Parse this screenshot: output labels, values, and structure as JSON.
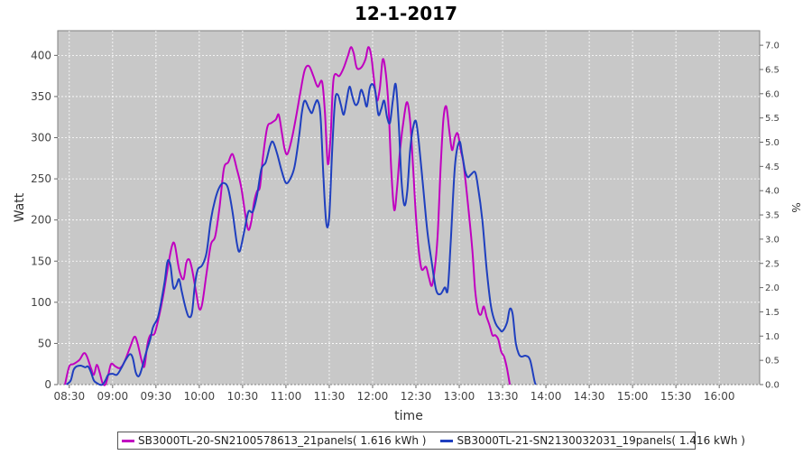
{
  "chart_data": {
    "type": "line",
    "title": "12-1-2017",
    "xlabel": "time",
    "ylabel": "Watt",
    "y2label": "%",
    "x_ticks": [
      "08:30",
      "09:00",
      "09:30",
      "10:00",
      "10:30",
      "11:00",
      "11:30",
      "12:00",
      "12:30",
      "13:00",
      "13:30",
      "14:00",
      "14:30",
      "15:00",
      "15:30",
      "16:00"
    ],
    "y_ticks": [
      0,
      50,
      100,
      150,
      200,
      250,
      300,
      350,
      400
    ],
    "y2_ticks": [
      "0.0",
      "0.5",
      "1.0",
      "1.5",
      "2.0",
      "2.5",
      "3.0",
      "3.5",
      "4.0",
      "4.5",
      "5.0",
      "5.5",
      "6.0",
      "6.5",
      "7.0"
    ],
    "xlim": [
      "08:22",
      "16:28"
    ],
    "ylim": [
      0,
      430
    ],
    "y2lim": [
      0,
      7.3
    ],
    "grid": true,
    "legend_position": "bottom",
    "series": [
      {
        "name": "SB3000TL-20-SN2100578613_21panels( 1.616 kWh )",
        "color": "#c000c0",
        "points": [
          [
            "08:27",
            0
          ],
          [
            "08:30",
            22
          ],
          [
            "08:33",
            25
          ],
          [
            "08:37",
            30
          ],
          [
            "08:40",
            38
          ],
          [
            "08:42",
            35
          ],
          [
            "08:45",
            20
          ],
          [
            "08:47",
            12
          ],
          [
            "08:49",
            24
          ],
          [
            "08:51",
            15
          ],
          [
            "08:53",
            2
          ],
          [
            "08:55",
            0
          ],
          [
            "08:57",
            12
          ],
          [
            "08:59",
            25
          ],
          [
            "09:02",
            22
          ],
          [
            "09:05",
            20
          ],
          [
            "09:08",
            27
          ],
          [
            "09:12",
            45
          ],
          [
            "09:15",
            58
          ],
          [
            "09:17",
            52
          ],
          [
            "09:20",
            30
          ],
          [
            "09:22",
            22
          ],
          [
            "09:24",
            48
          ],
          [
            "09:26",
            60
          ],
          [
            "09:29",
            62
          ],
          [
            "09:32",
            82
          ],
          [
            "09:35",
            108
          ],
          [
            "09:38",
            140
          ],
          [
            "09:41",
            168
          ],
          [
            "09:43",
            170
          ],
          [
            "09:46",
            140
          ],
          [
            "09:49",
            128
          ],
          [
            "09:51",
            148
          ],
          [
            "09:53",
            152
          ],
          [
            "09:55",
            140
          ],
          [
            "09:58",
            110
          ],
          [
            "10:00",
            92
          ],
          [
            "10:02",
            98
          ],
          [
            "10:05",
            135
          ],
          [
            "10:08",
            170
          ],
          [
            "10:11",
            180
          ],
          [
            "10:14",
            215
          ],
          [
            "10:17",
            262
          ],
          [
            "10:20",
            270
          ],
          [
            "10:23",
            280
          ],
          [
            "10:26",
            262
          ],
          [
            "10:29",
            240
          ],
          [
            "10:32",
            205
          ],
          [
            "10:34",
            188
          ],
          [
            "10:36",
            198
          ],
          [
            "10:38",
            222
          ],
          [
            "10:40",
            235
          ],
          [
            "10:42",
            240
          ],
          [
            "10:44",
            275
          ],
          [
            "10:47",
            312
          ],
          [
            "10:50",
            318
          ],
          [
            "10:53",
            322
          ],
          [
            "10:55",
            328
          ],
          [
            "10:57",
            308
          ],
          [
            "10:59",
            287
          ],
          [
            "11:01",
            280
          ],
          [
            "11:04",
            298
          ],
          [
            "11:07",
            325
          ],
          [
            "11:10",
            355
          ],
          [
            "11:13",
            382
          ],
          [
            "11:16",
            387
          ],
          [
            "11:19",
            375
          ],
          [
            "11:22",
            362
          ],
          [
            "11:25",
            368
          ],
          [
            "11:27",
            330
          ],
          [
            "11:29",
            268
          ],
          [
            "11:31",
            305
          ],
          [
            "11:33",
            372
          ],
          [
            "11:37",
            375
          ],
          [
            "11:40",
            385
          ],
          [
            "11:43",
            400
          ],
          [
            "11:45",
            410
          ],
          [
            "11:47",
            402
          ],
          [
            "11:49",
            385
          ],
          [
            "11:52",
            385
          ],
          [
            "11:55",
            395
          ],
          [
            "11:57",
            410
          ],
          [
            "11:59",
            400
          ],
          [
            "12:01",
            370
          ],
          [
            "12:03",
            345
          ],
          [
            "12:05",
            360
          ],
          [
            "12:07",
            395
          ],
          [
            "12:09",
            380
          ],
          [
            "12:11",
            338
          ],
          [
            "12:13",
            258
          ],
          [
            "12:15",
            212
          ],
          [
            "12:17",
            240
          ],
          [
            "12:19",
            285
          ],
          [
            "12:22",
            328
          ],
          [
            "12:24",
            343
          ],
          [
            "12:26",
            320
          ],
          [
            "12:28",
            265
          ],
          [
            "12:30",
            205
          ],
          [
            "12:32",
            162
          ],
          [
            "12:34",
            140
          ],
          [
            "12:37",
            143
          ],
          [
            "12:39",
            130
          ],
          [
            "12:41",
            120
          ],
          [
            "12:43",
            140
          ],
          [
            "12:45",
            180
          ],
          [
            "12:47",
            260
          ],
          [
            "12:49",
            322
          ],
          [
            "12:51",
            338
          ],
          [
            "12:53",
            310
          ],
          [
            "12:55",
            285
          ],
          [
            "12:57",
            300
          ],
          [
            "12:59",
            305
          ],
          [
            "13:01",
            285
          ],
          [
            "13:03",
            268
          ],
          [
            "13:06",
            220
          ],
          [
            "13:09",
            165
          ],
          [
            "13:11",
            115
          ],
          [
            "13:13",
            90
          ],
          [
            "13:15",
            85
          ],
          [
            "13:17",
            95
          ],
          [
            "13:19",
            82
          ],
          [
            "13:21",
            72
          ],
          [
            "13:23",
            60
          ],
          [
            "13:25",
            60
          ],
          [
            "13:27",
            55
          ],
          [
            "13:29",
            40
          ],
          [
            "13:31",
            34
          ],
          [
            "13:33",
            20
          ],
          [
            "13:35",
            0
          ]
        ]
      },
      {
        "name": "SB3000TL-21-SN2130032031_19panels( 1.416 kWh )",
        "color": "#1f3fbf",
        "points": [
          [
            "08:28",
            0
          ],
          [
            "08:31",
            5
          ],
          [
            "08:33",
            18
          ],
          [
            "08:35",
            22
          ],
          [
            "08:38",
            23
          ],
          [
            "08:41",
            21
          ],
          [
            "08:43",
            22
          ],
          [
            "08:45",
            15
          ],
          [
            "08:47",
            5
          ],
          [
            "08:49",
            2
          ],
          [
            "08:51",
            0
          ],
          [
            "08:53",
            0
          ],
          [
            "08:55",
            5
          ],
          [
            "08:57",
            12
          ],
          [
            "09:00",
            13
          ],
          [
            "09:03",
            12
          ],
          [
            "09:06",
            20
          ],
          [
            "09:09",
            30
          ],
          [
            "09:12",
            37
          ],
          [
            "09:14",
            32
          ],
          [
            "09:16",
            15
          ],
          [
            "09:18",
            10
          ],
          [
            "09:20",
            18
          ],
          [
            "09:23",
            38
          ],
          [
            "09:26",
            55
          ],
          [
            "09:28",
            70
          ],
          [
            "09:31",
            80
          ],
          [
            "09:33",
            95
          ],
          [
            "09:36",
            125
          ],
          [
            "09:38",
            150
          ],
          [
            "09:40",
            145
          ],
          [
            "09:42",
            118
          ],
          [
            "09:44",
            120
          ],
          [
            "09:46",
            128
          ],
          [
            "09:48",
            112
          ],
          [
            "09:51",
            90
          ],
          [
            "09:53",
            82
          ],
          [
            "09:55",
            88
          ],
          [
            "09:57",
            122
          ],
          [
            "09:59",
            140
          ],
          [
            "10:02",
            145
          ],
          [
            "10:05",
            160
          ],
          [
            "10:08",
            200
          ],
          [
            "10:11",
            225
          ],
          [
            "10:14",
            240
          ],
          [
            "10:17",
            245
          ],
          [
            "10:20",
            238
          ],
          [
            "10:23",
            210
          ],
          [
            "10:26",
            172
          ],
          [
            "10:28",
            162
          ],
          [
            "10:31",
            185
          ],
          [
            "10:34",
            210
          ],
          [
            "10:37",
            210
          ],
          [
            "10:40",
            230
          ],
          [
            "10:43",
            262
          ],
          [
            "10:46",
            270
          ],
          [
            "10:49",
            290
          ],
          [
            "10:51",
            295
          ],
          [
            "10:54",
            280
          ],
          [
            "10:57",
            260
          ],
          [
            "11:00",
            245
          ],
          [
            "11:03",
            250
          ],
          [
            "11:06",
            265
          ],
          [
            "11:09",
            300
          ],
          [
            "11:11",
            330
          ],
          [
            "11:13",
            345
          ],
          [
            "11:16",
            335
          ],
          [
            "11:18",
            330
          ],
          [
            "11:20",
            340
          ],
          [
            "11:22",
            345
          ],
          [
            "11:24",
            325
          ],
          [
            "11:26",
            250
          ],
          [
            "11:28",
            195
          ],
          [
            "11:30",
            205
          ],
          [
            "11:32",
            285
          ],
          [
            "11:34",
            345
          ],
          [
            "11:36",
            352
          ],
          [
            "11:38",
            340
          ],
          [
            "11:40",
            328
          ],
          [
            "11:42",
            345
          ],
          [
            "11:44",
            362
          ],
          [
            "11:46",
            350
          ],
          [
            "11:48",
            340
          ],
          [
            "11:50",
            343
          ],
          [
            "11:52",
            358
          ],
          [
            "11:54",
            350
          ],
          [
            "11:56",
            338
          ],
          [
            "11:58",
            360
          ],
          [
            "12:00",
            365
          ],
          [
            "12:02",
            355
          ],
          [
            "12:04",
            328
          ],
          [
            "12:06",
            335
          ],
          [
            "12:08",
            345
          ],
          [
            "12:10",
            325
          ],
          [
            "12:12",
            318
          ],
          [
            "12:14",
            345
          ],
          [
            "12:16",
            365
          ],
          [
            "12:18",
            320
          ],
          [
            "12:20",
            248
          ],
          [
            "12:22",
            218
          ],
          [
            "12:24",
            235
          ],
          [
            "12:26",
            285
          ],
          [
            "12:28",
            312
          ],
          [
            "12:30",
            320
          ],
          [
            "12:32",
            295
          ],
          [
            "12:35",
            240
          ],
          [
            "12:38",
            185
          ],
          [
            "12:41",
            148
          ],
          [
            "12:44",
            115
          ],
          [
            "12:47",
            110
          ],
          [
            "12:50",
            118
          ],
          [
            "12:52",
            115
          ],
          [
            "12:54",
            170
          ],
          [
            "12:57",
            265
          ],
          [
            "13:00",
            295
          ],
          [
            "13:02",
            280
          ],
          [
            "13:04",
            260
          ],
          [
            "13:06",
            252
          ],
          [
            "13:08",
            255
          ],
          [
            "13:11",
            258
          ],
          [
            "13:13",
            240
          ],
          [
            "13:16",
            200
          ],
          [
            "13:19",
            140
          ],
          [
            "13:22",
            95
          ],
          [
            "13:25",
            75
          ],
          [
            "13:28",
            67
          ],
          [
            "13:30",
            65
          ],
          [
            "13:33",
            75
          ],
          [
            "13:35",
            92
          ],
          [
            "13:37",
            85
          ],
          [
            "13:39",
            52
          ],
          [
            "13:41",
            38
          ],
          [
            "13:43",
            34
          ],
          [
            "13:46",
            35
          ],
          [
            "13:49",
            30
          ],
          [
            "13:52",
            5
          ],
          [
            "13:53",
            0
          ]
        ]
      }
    ]
  }
}
